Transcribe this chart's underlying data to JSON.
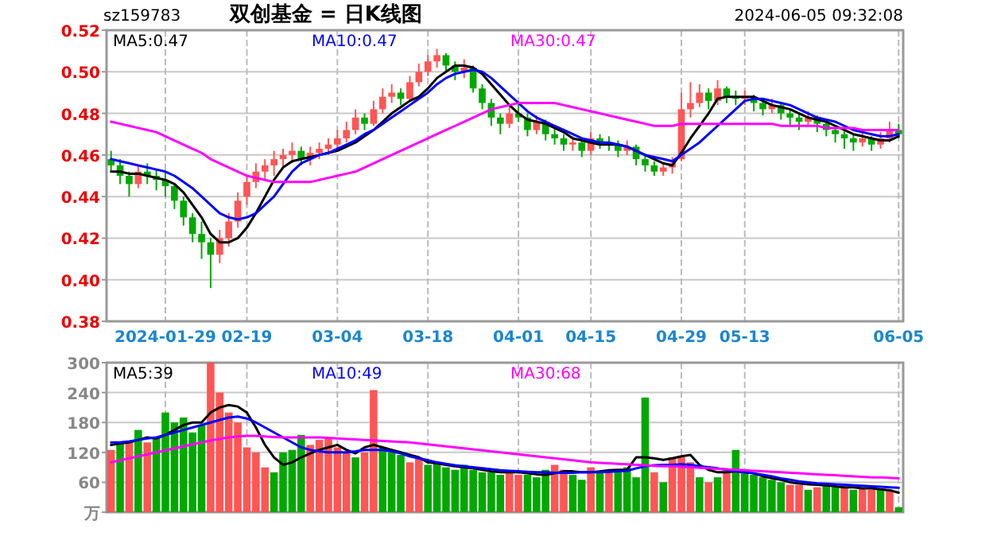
{
  "chart_data": [
    {
      "type": "candlestick",
      "title": "双创基金 = 日K线图",
      "subtitle": "sz159783",
      "annotations": [
        "2024-06-05 09:32:08"
      ],
      "categories": [
        null,
        null,
        null,
        null,
        null,
        null,
        "2024-01-29",
        null,
        null,
        null,
        null,
        null,
        null,
        null,
        null,
        "02-19",
        null,
        null,
        null,
        null,
        null,
        null,
        null,
        null,
        null,
        "03-04",
        null,
        null,
        null,
        null,
        null,
        null,
        null,
        null,
        null,
        "03-18",
        null,
        null,
        null,
        null,
        null,
        null,
        null,
        null,
        null,
        "04-01",
        null,
        null,
        null,
        null,
        null,
        null,
        null,
        "04-15",
        null,
        null,
        null,
        null,
        null,
        null,
        null,
        null,
        null,
        "04-29",
        null,
        null,
        null,
        null,
        null,
        null,
        "05-13",
        null,
        null,
        null,
        null,
        null,
        null,
        null,
        null,
        null,
        null,
        null,
        null,
        null,
        null,
        null,
        null,
        "06-05"
      ],
      "ohlc": [
        [
          0.458,
          0.462,
          0.452,
          0.455
        ],
        [
          0.455,
          0.458,
          0.446,
          0.45
        ],
        [
          0.45,
          0.452,
          0.44,
          0.446
        ],
        [
          0.446,
          0.455,
          0.444,
          0.452
        ],
        [
          0.452,
          0.456,
          0.446,
          0.45
        ],
        [
          0.45,
          0.453,
          0.443,
          0.448
        ],
        [
          0.448,
          0.452,
          0.44,
          0.445
        ],
        [
          0.445,
          0.446,
          0.434,
          0.438
        ],
        [
          0.438,
          0.44,
          0.426,
          0.43
        ],
        [
          0.43,
          0.432,
          0.418,
          0.422
        ],
        [
          0.422,
          0.428,
          0.41,
          0.418
        ],
        [
          0.418,
          0.42,
          0.396,
          0.412
        ],
        [
          0.412,
          0.424,
          0.408,
          0.42
        ],
        [
          0.42,
          0.432,
          0.416,
          0.428
        ],
        [
          0.428,
          0.442,
          0.425,
          0.438
        ],
        [
          0.44,
          0.45,
          0.436,
          0.447
        ],
        [
          0.447,
          0.456,
          0.444,
          0.452
        ],
        [
          0.452,
          0.458,
          0.448,
          0.455
        ],
        [
          0.455,
          0.462,
          0.45,
          0.458
        ],
        [
          0.458,
          0.463,
          0.454,
          0.46
        ],
        [
          0.46,
          0.466,
          0.456,
          0.462
        ],
        [
          0.462,
          0.464,
          0.455,
          0.458
        ],
        [
          0.458,
          0.464,
          0.455,
          0.461
        ],
        [
          0.461,
          0.466,
          0.458,
          0.463
        ],
        [
          0.463,
          0.468,
          0.46,
          0.465
        ],
        [
          0.465,
          0.472,
          0.462,
          0.468
        ],
        [
          0.468,
          0.476,
          0.466,
          0.472
        ],
        [
          0.472,
          0.482,
          0.47,
          0.478
        ],
        [
          0.478,
          0.48,
          0.472,
          0.475
        ],
        [
          0.475,
          0.486,
          0.474,
          0.482
        ],
        [
          0.482,
          0.492,
          0.48,
          0.488
        ],
        [
          0.488,
          0.494,
          0.485,
          0.49
        ],
        [
          0.49,
          0.492,
          0.484,
          0.487
        ],
        [
          0.487,
          0.498,
          0.486,
          0.495
        ],
        [
          0.495,
          0.504,
          0.493,
          0.5
        ],
        [
          0.5,
          0.508,
          0.498,
          0.505
        ],
        [
          0.505,
          0.511,
          0.502,
          0.508
        ],
        [
          0.508,
          0.509,
          0.5,
          0.503
        ],
        [
          0.503,
          0.505,
          0.496,
          0.5
        ],
        [
          0.5,
          0.506,
          0.497,
          0.502
        ],
        [
          0.502,
          0.503,
          0.49,
          0.492
        ],
        [
          0.492,
          0.494,
          0.482,
          0.485
        ],
        [
          0.485,
          0.487,
          0.474,
          0.478
        ],
        [
          0.478,
          0.48,
          0.47,
          0.475
        ],
        [
          0.475,
          0.484,
          0.473,
          0.48
        ],
        [
          0.48,
          0.486,
          0.476,
          0.478
        ],
        [
          0.478,
          0.48,
          0.469,
          0.472
        ],
        [
          0.472,
          0.479,
          0.47,
          0.476
        ],
        [
          0.476,
          0.477,
          0.467,
          0.47
        ],
        [
          0.47,
          0.473,
          0.465,
          0.468
        ],
        [
          0.468,
          0.47,
          0.462,
          0.465
        ],
        [
          0.465,
          0.469,
          0.462,
          0.466
        ],
        [
          0.466,
          0.468,
          0.459,
          0.462
        ],
        [
          0.462,
          0.471,
          0.46,
          0.468
        ],
        [
          0.468,
          0.47,
          0.463,
          0.466
        ],
        [
          0.466,
          0.469,
          0.462,
          0.465
        ],
        [
          0.465,
          0.467,
          0.459,
          0.462
        ],
        [
          0.462,
          0.467,
          0.46,
          0.464
        ],
        [
          0.464,
          0.465,
          0.455,
          0.458
        ],
        [
          0.458,
          0.46,
          0.452,
          0.455
        ],
        [
          0.455,
          0.457,
          0.45,
          0.452
        ],
        [
          0.452,
          0.456,
          0.45,
          0.454
        ],
        [
          0.454,
          0.459,
          0.451,
          0.456
        ],
        [
          0.458,
          0.49,
          0.457,
          0.482
        ],
        [
          0.482,
          0.495,
          0.478,
          0.485
        ],
        [
          0.485,
          0.494,
          0.483,
          0.49
        ],
        [
          0.49,
          0.492,
          0.482,
          0.486
        ],
        [
          0.486,
          0.496,
          0.484,
          0.492
        ],
        [
          0.492,
          0.493,
          0.485,
          0.488
        ],
        [
          0.488,
          0.491,
          0.484,
          0.487
        ],
        [
          0.487,
          0.491,
          0.484,
          0.488
        ],
        [
          0.488,
          0.489,
          0.481,
          0.485
        ],
        [
          0.485,
          0.487,
          0.479,
          0.482
        ],
        [
          0.482,
          0.487,
          0.48,
          0.484
        ],
        [
          0.484,
          0.485,
          0.477,
          0.48
        ],
        [
          0.48,
          0.482,
          0.474,
          0.478
        ],
        [
          0.478,
          0.48,
          0.472,
          0.476
        ],
        [
          0.476,
          0.481,
          0.474,
          0.478
        ],
        [
          0.478,
          0.479,
          0.471,
          0.475
        ],
        [
          0.475,
          0.477,
          0.469,
          0.472
        ],
        [
          0.472,
          0.474,
          0.466,
          0.47
        ],
        [
          0.47,
          0.472,
          0.463,
          0.468
        ],
        [
          0.468,
          0.47,
          0.462,
          0.466
        ],
        [
          0.466,
          0.471,
          0.464,
          0.468
        ],
        [
          0.468,
          0.469,
          0.462,
          0.465
        ],
        [
          0.465,
          0.471,
          0.463,
          0.468
        ],
        [
          0.468,
          0.476,
          0.466,
          0.472
        ],
        [
          0.472,
          0.475,
          0.468,
          0.47
        ]
      ],
      "colors": [
        "#00a800",
        "#00a800",
        "#00a800",
        "#ff5555",
        "#00a800",
        "#00a800",
        "#00a800",
        "#00a800",
        "#00a800",
        "#00a800",
        "#00a800",
        "#00a800",
        "#ff5555",
        "#ff5555",
        "#ff5555",
        "#ff5555",
        "#ff5555",
        "#ff5555",
        "#ff5555",
        "#ff5555",
        "#ff5555",
        "#00a800",
        "#ff5555",
        "#ff5555",
        "#ff5555",
        "#ff5555",
        "#ff5555",
        "#ff5555",
        "#00a800",
        "#ff5555",
        "#ff5555",
        "#ff5555",
        "#00a800",
        "#ff5555",
        "#ff5555",
        "#ff5555",
        "#ff5555",
        "#00a800",
        "#00a800",
        "#ff5555",
        "#00a800",
        "#00a800",
        "#00a800",
        "#00a800",
        "#ff5555",
        "#00a800",
        "#00a800",
        "#ff5555",
        "#00a800",
        "#00a800",
        "#00a800",
        "#ff5555",
        "#00a800",
        "#ff5555",
        "#00a800",
        "#00a800",
        "#00a800",
        "#ff5555",
        "#00a800",
        "#00a800",
        "#00a800",
        "#ff5555",
        "#ff5555",
        "#ff5555",
        "#ff5555",
        "#ff5555",
        "#00a800",
        "#ff5555",
        "#00a800",
        "#00a800",
        "#ff5555",
        "#00a800",
        "#00a800",
        "#ff5555",
        "#00a800",
        "#00a800",
        "#00a800",
        "#ff5555",
        "#00a800",
        "#00a800",
        "#00a800",
        "#00a800",
        "#00a800",
        "#ff5555",
        "#00a800",
        "#ff5555",
        "#ff5555",
        "#00a800"
      ],
      "series": [
        {
          "type": "line",
          "name": "MA5:0.47",
          "color": "#000000",
          "values": [
            0.452,
            0.452,
            0.451,
            0.451,
            0.45,
            0.449,
            0.448,
            0.446,
            0.442,
            0.436,
            0.43,
            0.422,
            0.418,
            0.418,
            0.42,
            0.425,
            0.432,
            0.44,
            0.448,
            0.454,
            0.457,
            0.458,
            0.459,
            0.46,
            0.461,
            0.462,
            0.464,
            0.466,
            0.469,
            0.472,
            0.476,
            0.48,
            0.483,
            0.486,
            0.488,
            0.492,
            0.497,
            0.5,
            0.503,
            0.503,
            0.502,
            0.499,
            0.494,
            0.489,
            0.484,
            0.48,
            0.477,
            0.476,
            0.475,
            0.473,
            0.471,
            0.468,
            0.467,
            0.466,
            0.465,
            0.465,
            0.465,
            0.464,
            0.462,
            0.46,
            0.458,
            0.456,
            0.455,
            0.461,
            0.468,
            0.474,
            0.48,
            0.487,
            0.488,
            0.488,
            0.488,
            0.488,
            0.486,
            0.484,
            0.483,
            0.482,
            0.48,
            0.478,
            0.477,
            0.476,
            0.474,
            0.472,
            0.47,
            0.469,
            0.468,
            0.467,
            0.467,
            0.469
          ]
        },
        {
          "type": "line",
          "name": "MA10:0.47",
          "color": "#0000ff",
          "values": [
            0.458,
            0.457,
            0.456,
            0.455,
            0.454,
            0.453,
            0.452,
            0.45,
            0.447,
            0.444,
            0.44,
            0.436,
            0.432,
            0.43,
            0.429,
            0.43,
            0.432,
            0.436,
            0.44,
            0.446,
            0.452,
            0.456,
            0.458,
            0.46,
            0.461,
            0.463,
            0.465,
            0.467,
            0.47,
            0.472,
            0.475,
            0.478,
            0.481,
            0.484,
            0.487,
            0.49,
            0.494,
            0.497,
            0.499,
            0.5,
            0.501,
            0.5,
            0.497,
            0.493,
            0.489,
            0.485,
            0.481,
            0.478,
            0.476,
            0.474,
            0.472,
            0.47,
            0.468,
            0.467,
            0.466,
            0.466,
            0.465,
            0.464,
            0.462,
            0.46,
            0.459,
            0.458,
            0.457,
            0.46,
            0.463,
            0.466,
            0.47,
            0.474,
            0.478,
            0.482,
            0.486,
            0.487,
            0.487,
            0.486,
            0.485,
            0.484,
            0.482,
            0.48,
            0.478,
            0.477,
            0.476,
            0.474,
            0.472,
            0.471,
            0.47,
            0.469,
            0.469,
            0.47
          ]
        },
        {
          "type": "line",
          "name": "MA30:0.47",
          "color": "#ff00ff",
          "values": [
            0.476,
            0.475,
            0.474,
            0.473,
            0.472,
            0.471,
            0.469,
            0.467,
            0.465,
            0.463,
            0.461,
            0.458,
            0.456,
            0.454,
            0.452,
            0.45,
            0.449,
            0.448,
            0.447,
            0.447,
            0.447,
            0.447,
            0.447,
            0.448,
            0.449,
            0.45,
            0.451,
            0.452,
            0.454,
            0.456,
            0.458,
            0.46,
            0.462,
            0.464,
            0.466,
            0.468,
            0.47,
            0.472,
            0.474,
            0.476,
            0.478,
            0.48,
            0.482,
            0.483,
            0.484,
            0.485,
            0.485,
            0.485,
            0.485,
            0.485,
            0.484,
            0.483,
            0.482,
            0.481,
            0.48,
            0.479,
            0.478,
            0.477,
            0.476,
            0.475,
            0.474,
            0.474,
            0.474,
            0.475,
            0.475,
            0.475,
            0.475,
            0.475,
            0.475,
            0.475,
            0.475,
            0.475,
            0.475,
            0.475,
            0.474,
            0.474,
            0.474,
            0.474,
            0.474,
            0.473,
            0.473,
            0.473,
            0.473,
            0.472,
            0.472,
            0.472,
            0.472,
            0.472
          ]
        }
      ],
      "ylim": [
        0.38,
        0.52
      ],
      "yticks": [
        {
          "value": 0.38,
          "label": "0.38"
        },
        {
          "value": 0.4,
          "label": "0.40"
        },
        {
          "value": 0.42,
          "label": "0.42"
        },
        {
          "value": 0.44,
          "label": "0.44"
        },
        {
          "value": 0.46,
          "label": "0.46"
        },
        {
          "value": 0.48,
          "label": "0.48"
        },
        {
          "value": 0.5,
          "label": "0.50"
        },
        {
          "value": 0.52,
          "label": "0.52"
        }
      ],
      "grid": true,
      "legend": "top left"
    },
    {
      "type": "bar",
      "tick_labels": "y",
      "categories": [
        null,
        null,
        null,
        null,
        null,
        null,
        null,
        null,
        null,
        null,
        null,
        null,
        null,
        null,
        null,
        null,
        null,
        null,
        null,
        null,
        null,
        null,
        null,
        null,
        null,
        null,
        null,
        null,
        null,
        null,
        null,
        null,
        null,
        null,
        null,
        null,
        null,
        null,
        null,
        null,
        null,
        null,
        null,
        null,
        null,
        null,
        null,
        null,
        null,
        null,
        null,
        null,
        null,
        null,
        null,
        null,
        null,
        null,
        null,
        null,
        null,
        null,
        null,
        null,
        null,
        null,
        null,
        null,
        null,
        null,
        null,
        null,
        null,
        null,
        null,
        null,
        null,
        null,
        null,
        null,
        null,
        null,
        null,
        null,
        null,
        null,
        null,
        null
      ],
      "values": [
        125,
        140,
        140,
        165,
        140,
        150,
        200,
        180,
        190,
        160,
        175,
        300,
        240,
        200,
        180,
        130,
        120,
        90,
        80,
        120,
        125,
        155,
        135,
        145,
        150,
        130,
        120,
        110,
        120,
        245,
        130,
        120,
        115,
        100,
        110,
        95,
        100,
        90,
        85,
        95,
        85,
        80,
        80,
        75,
        80,
        75,
        75,
        70,
        85,
        95,
        85,
        75,
        65,
        90,
        80,
        80,
        85,
        90,
        70,
        230,
        80,
        60,
        110,
        110,
        100,
        70,
        60,
        70,
        80,
        125,
        80,
        75,
        70,
        65,
        60,
        55,
        55,
        45,
        50,
        55,
        50,
        50,
        45,
        50,
        45,
        45,
        45,
        10
      ],
      "colors": [
        "#ff5555",
        "#00a800",
        "#ff5555",
        "#00a800",
        "#ff5555",
        "#00a800",
        "#00a800",
        "#00a800",
        "#00a800",
        "#00a800",
        "#00a800",
        "#ff5555",
        "#ff5555",
        "#ff5555",
        "#ff5555",
        "#ff5555",
        "#ff5555",
        "#ff5555",
        "#00a800",
        "#00a800",
        "#00a800",
        "#00a800",
        "#ff5555",
        "#ff5555",
        "#ff5555",
        "#ff5555",
        "#ff5555",
        "#00a800",
        "#ff5555",
        "#ff5555",
        "#00a800",
        "#00a800",
        "#00a800",
        "#ff5555",
        "#ff5555",
        "#00a800",
        "#00a800",
        "#00a800",
        "#00a800",
        "#00a800",
        "#00a800",
        "#00a800",
        "#00a800",
        "#00a800",
        "#ff5555",
        "#ff5555",
        "#00a800",
        "#00a800",
        "#00a800",
        "#ff5555",
        "#ff5555",
        "#00a800",
        "#00a800",
        "#ff5555",
        "#00a800",
        "#ff5555",
        "#00a800",
        "#00a800",
        "#00a800",
        "#00a800",
        "#ff5555",
        "#00a800",
        "#ff5555",
        "#ff5555",
        "#ff5555",
        "#00a800",
        "#ff5555",
        "#00a800",
        "#ff5555",
        "#00a800",
        "#00a800",
        "#00a800",
        "#00a800",
        "#00a800",
        "#00a800",
        "#ff5555",
        "#ff5555",
        "#00a800",
        "#ff5555",
        "#00a800",
        "#00a800",
        "#ff5555",
        "#00a800",
        "#ff5555",
        "#ff5555",
        "#00a800",
        "#ff5555",
        "#00a800"
      ],
      "series": [
        {
          "type": "line",
          "name": "MA5:39",
          "color": "#000000",
          "values": [
            135,
            138,
            140,
            145,
            150,
            148,
            155,
            165,
            175,
            180,
            180,
            200,
            210,
            215,
            212,
            200,
            170,
            135,
            110,
            95,
            100,
            110,
            118,
            125,
            130,
            135,
            125,
            118,
            130,
            135,
            130,
            125,
            120,
            115,
            110,
            100,
            98,
            95,
            92,
            90,
            88,
            85,
            82,
            80,
            80,
            80,
            78,
            76,
            75,
            78,
            82,
            82,
            80,
            80,
            82,
            84,
            85,
            85,
            110,
            110,
            108,
            105,
            108,
            112,
            115,
            95,
            85,
            80,
            80,
            82,
            80,
            78,
            72,
            68,
            65,
            60,
            58,
            56,
            55,
            54,
            52,
            50,
            50,
            48,
            48,
            46,
            44,
            39
          ]
        },
        {
          "type": "line",
          "name": "MA10:49",
          "color": "#0000ff",
          "values": [
            140,
            140,
            142,
            145,
            148,
            150,
            155,
            160,
            165,
            170,
            175,
            180,
            185,
            190,
            192,
            188,
            180,
            170,
            160,
            150,
            140,
            130,
            125,
            122,
            120,
            120,
            120,
            122,
            125,
            125,
            125,
            122,
            118,
            112,
            108,
            104,
            100,
            97,
            94,
            92,
            90,
            88,
            86,
            84,
            83,
            82,
            81,
            80,
            80,
            79,
            79,
            79,
            80,
            80,
            80,
            81,
            82,
            83,
            88,
            92,
            94,
            95,
            95,
            96,
            95,
            92,
            90,
            88,
            85,
            82,
            80,
            78,
            75,
            72,
            68,
            65,
            62,
            60,
            58,
            57,
            56,
            55,
            54,
            53,
            52,
            51,
            50,
            49
          ]
        },
        {
          "type": "line",
          "name": "MA30:68",
          "color": "#ff00ff",
          "values": [
            100,
            104,
            108,
            112,
            116,
            120,
            124,
            128,
            132,
            136,
            140,
            144,
            147,
            150,
            152,
            153,
            153,
            152,
            151,
            150,
            150,
            150,
            150,
            150,
            149,
            148,
            147,
            146,
            145,
            144,
            143,
            142,
            141,
            140,
            138,
            136,
            134,
            132,
            130,
            128,
            126,
            124,
            122,
            120,
            118,
            116,
            114,
            112,
            110,
            108,
            106,
            104,
            102,
            100,
            99,
            98,
            97,
            96,
            95,
            94,
            93,
            92,
            92,
            91,
            90,
            89,
            88,
            87,
            86,
            85,
            84,
            83,
            82,
            81,
            80,
            79,
            78,
            77,
            76,
            75,
            74,
            73,
            72,
            71,
            70,
            70,
            69,
            68
          ]
        }
      ],
      "ylim": [
        0,
        300
      ],
      "yticks": [
        {
          "value": 0,
          "label": "万"
        },
        60,
        120,
        180,
        240,
        300
      ],
      "grid": true,
      "legend": "top left"
    }
  ]
}
